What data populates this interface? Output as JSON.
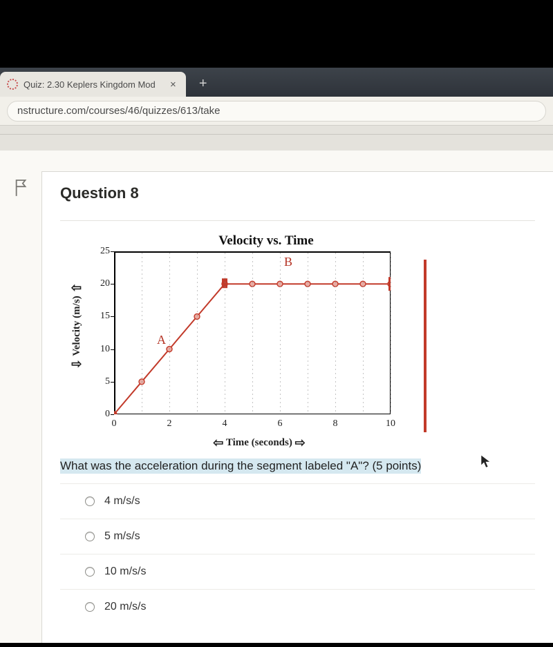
{
  "browser": {
    "tab_title": "Quiz: 2.30 Keplers Kingdom Mod",
    "url": "nstructure.com/courses/46/quizzes/613/take"
  },
  "question": {
    "heading": "Question 8",
    "prompt": "What was the acceleration during the segment labeled \"A\"? (5 points)",
    "options": [
      "4 m/s/s",
      "5 m/s/s",
      "10 m/s/s",
      "20 m/s/s"
    ]
  },
  "chart": {
    "type": "line",
    "title": "Velocity vs. Time",
    "xlabel_left_arrow": "⇦",
    "xlabel_text": "Time (seconds)",
    "xlabel_right_arrow": "⇨",
    "ylabel_up_arrow": "⇧",
    "ylabel_text": "Velocity (m/s)",
    "ylabel_down_arrow": "⇩",
    "xlim": [
      0,
      10
    ],
    "ylim": [
      0,
      25
    ],
    "xticks": [
      0,
      2,
      4,
      6,
      8,
      10
    ],
    "yticks": [
      0,
      5,
      10,
      15,
      20,
      25
    ],
    "line_color": "#c23a2a",
    "marker_fill": "#e9aca3",
    "marker_stroke": "#c23a2a",
    "line_width": 2,
    "marker_radius": 4,
    "segment_A": {
      "label": "A",
      "points": [
        [
          0,
          0
        ],
        [
          1,
          5
        ],
        [
          2,
          10
        ],
        [
          3,
          15
        ],
        [
          4,
          20
        ]
      ]
    },
    "segment_B": {
      "label": "B",
      "points": [
        [
          4,
          20
        ],
        [
          5,
          20
        ],
        [
          6,
          20
        ],
        [
          7,
          20
        ],
        [
          8,
          20
        ],
        [
          9,
          20
        ],
        [
          10,
          20
        ]
      ]
    },
    "label_A_pos": [
      1.7,
      11
    ],
    "label_B_pos": [
      6.3,
      23
    ],
    "grid_dot_color": "#888888",
    "grid_cols": [
      1,
      2,
      3,
      4,
      5,
      6,
      7,
      8,
      9,
      10
    ],
    "background": "#ffffff",
    "red_right_bar": "#c23a2a"
  }
}
